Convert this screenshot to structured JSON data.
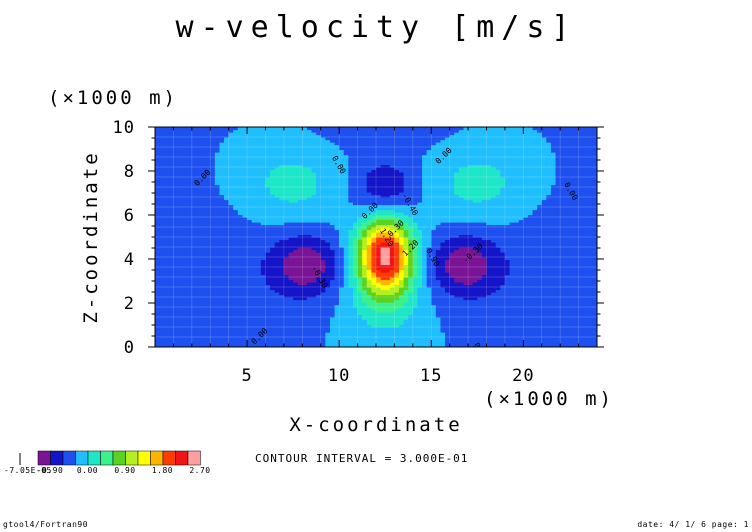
{
  "chart_data": {
    "type": "heatmap",
    "title": "w-velocity [m/s]",
    "xlabel": "X-coordinate",
    "ylabel": "Z-coordinate",
    "x_unit_label": "(×1000 m)",
    "y_unit_label": "(×1000 m)",
    "xlim": [
      0,
      24
    ],
    "ylim": [
      0,
      10
    ],
    "x_ticks": [
      5,
      10,
      15,
      20
    ],
    "y_ticks": [
      0,
      2,
      4,
      6,
      8,
      10
    ],
    "x_tick_labels": [
      "5",
      "10",
      "15",
      "20"
    ],
    "y_tick_labels": [
      "0",
      "2",
      "4",
      "6",
      "8",
      "10"
    ],
    "contour_interval_text": "CONTOUR INTERVAL = 3.000E-01",
    "contour_interval": 0.3,
    "color_levels": [
      -0.9,
      -0.6,
      -0.3,
      0.0,
      0.3,
      0.6,
      0.9,
      1.2,
      1.5,
      1.8,
      2.1,
      2.4,
      2.7
    ],
    "colorbar_tick_labels": [
      "-0.90",
      "0.00",
      "0.90",
      "1.80",
      "2.70"
    ],
    "colorbar_underflow_label": "-7.05E-05",
    "colors": [
      "#7a1496",
      "#1414c8",
      "#1e50f0",
      "#1ebeff",
      "#1ee6c8",
      "#3cf08c",
      "#5ad21e",
      "#b4f01e",
      "#ffff00",
      "#ffb400",
      "#ff3c00",
      "#f01414",
      "#ffa0a0"
    ],
    "features": [
      {
        "type": "updraft",
        "x": 12.5,
        "z": 4.2,
        "peak": 2.6
      },
      {
        "type": "downdraft",
        "x": 12.5,
        "z": 7.2,
        "peak": -0.6
      },
      {
        "type": "downdraft",
        "x": 8.2,
        "z": 3.8,
        "peak": -0.7
      },
      {
        "type": "downdraft",
        "x": 16.8,
        "z": 3.8,
        "peak": -0.7
      },
      {
        "type": "weak-updraft",
        "x": 7.3,
        "z": 7.4,
        "peak": 0.4
      },
      {
        "type": "weak-updraft",
        "x": 17.7,
        "z": 7.4,
        "peak": 0.4
      }
    ],
    "contour_labels": [
      "0.00",
      "0.00",
      "0.00",
      "0.00",
      "0.00",
      "0.00",
      "0.00",
      "-0.30",
      "-0.30",
      "-0.40",
      "0.30",
      "1.20",
      "1.20",
      "0.90"
    ]
  },
  "footer": {
    "left": "gtool4/Fortran90",
    "right": "date: 4/ 1/ 6 page: 1"
  }
}
